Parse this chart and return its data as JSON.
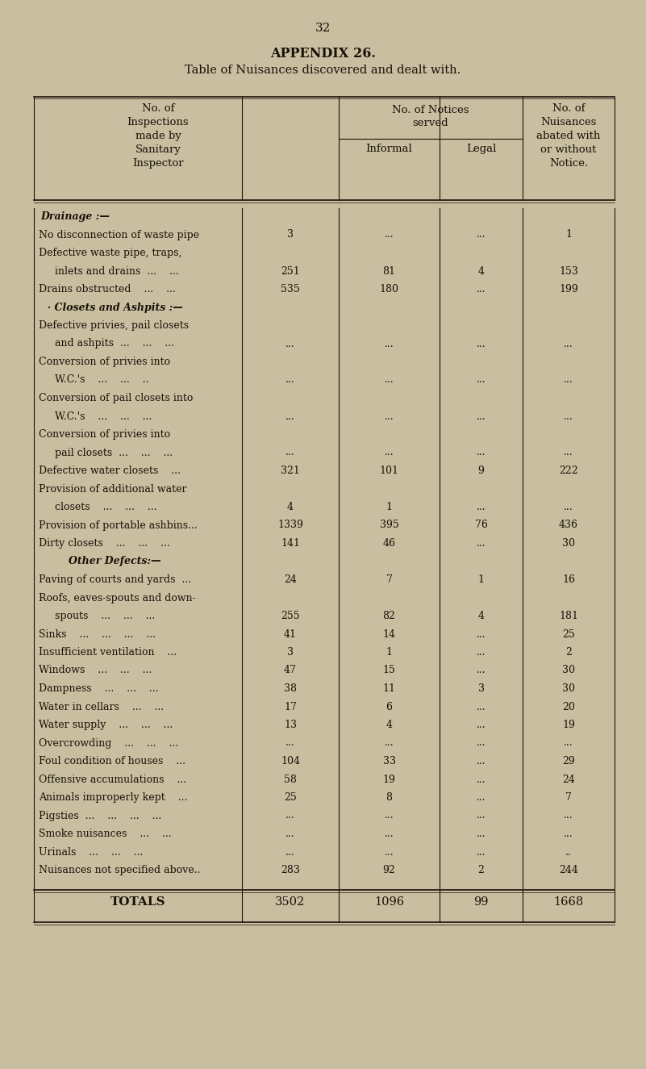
{
  "page_number": "32",
  "title1": "APPENDIX 26.",
  "title2": "Table of Nuisances discovered and dealt with.",
  "bg_color": "#c9bfa0",
  "text_color": "#1a1008",
  "rows": [
    {
      "label": "Drainage :—",
      "is_section": true,
      "inspections": "",
      "informal": "",
      "legal": "",
      "nuisances": ""
    },
    {
      "label": "No disconnection of waste pipe",
      "is_section": false,
      "inspections": "3",
      "informal": "...",
      "legal": "...",
      "nuisances": "1"
    },
    {
      "label": "Defective waste pipe, traps,",
      "is_section": false,
      "inspections": "",
      "informal": "",
      "legal": "",
      "nuisances": ""
    },
    {
      "label": "     inlets and drains  ...    ...",
      "is_section": false,
      "inspections": "251",
      "informal": "81",
      "legal": "4",
      "nuisances": "153"
    },
    {
      "label": "Drains obstructed    ...    ...",
      "is_section": false,
      "inspections": "535",
      "informal": "180",
      "legal": "...",
      "nuisances": "199"
    },
    {
      "label": "  · Closets and Ashpits :—",
      "is_section": true,
      "inspections": "",
      "informal": "",
      "legal": "",
      "nuisances": ""
    },
    {
      "label": "Defective privies, pail closets",
      "is_section": false,
      "inspections": "",
      "informal": "",
      "legal": "",
      "nuisances": ""
    },
    {
      "label": "     and ashpits  ...    ...    ...",
      "is_section": false,
      "inspections": "...",
      "informal": "...",
      "legal": "...",
      "nuisances": "..."
    },
    {
      "label": "Conversion of privies into",
      "is_section": false,
      "inspections": "",
      "informal": "",
      "legal": "",
      "nuisances": ""
    },
    {
      "label": "     W.C.'s    ...    ...    ..",
      "is_section": false,
      "inspections": "...",
      "informal": "...",
      "legal": "...",
      "nuisances": "..."
    },
    {
      "label": "Conversion of pail closets into",
      "is_section": false,
      "inspections": "",
      "informal": "",
      "legal": "",
      "nuisances": ""
    },
    {
      "label": "     W.C.'s    ...    ...    ...",
      "is_section": false,
      "inspections": "...",
      "informal": "...",
      "legal": "...",
      "nuisances": "..."
    },
    {
      "label": "Conversion of privies into",
      "is_section": false,
      "inspections": "",
      "informal": "",
      "legal": "",
      "nuisances": ""
    },
    {
      "label": "     pail closets  ...    ...    ...",
      "is_section": false,
      "inspections": "...",
      "informal": "...",
      "legal": "...",
      "nuisances": "..."
    },
    {
      "label": "Defective water closets    ...",
      "is_section": false,
      "inspections": "321",
      "informal": "101",
      "legal": "9",
      "nuisances": "222"
    },
    {
      "label": "Provision of additional water",
      "is_section": false,
      "inspections": "",
      "informal": "",
      "legal": "",
      "nuisances": ""
    },
    {
      "label": "     closets    ...    ...    ...",
      "is_section": false,
      "inspections": "4",
      "informal": "1",
      "legal": "...",
      "nuisances": "..."
    },
    {
      "label": "Provision of portable ashbins...",
      "is_section": false,
      "inspections": "1339",
      "informal": "395",
      "legal": "76",
      "nuisances": "436"
    },
    {
      "label": "Dirty closets    ...    ...    ...",
      "is_section": false,
      "inspections": "141",
      "informal": "46",
      "legal": "...",
      "nuisances": "30"
    },
    {
      "label": "        Other Defects:—",
      "is_section": true,
      "inspections": "",
      "informal": "",
      "legal": "",
      "nuisances": ""
    },
    {
      "label": "Paving of courts and yards  ...",
      "is_section": false,
      "inspections": "24",
      "informal": "7",
      "legal": "1",
      "nuisances": "16"
    },
    {
      "label": "Roofs, eaves-spouts and down-",
      "is_section": false,
      "inspections": "",
      "informal": "",
      "legal": "",
      "nuisances": ""
    },
    {
      "label": "     spouts    ...    ...    ...",
      "is_section": false,
      "inspections": "255",
      "informal": "82",
      "legal": "4",
      "nuisances": "181"
    },
    {
      "label": "Sinks    ...    ...    ...    ...",
      "is_section": false,
      "inspections": "41",
      "informal": "14",
      "legal": "...",
      "nuisances": "25"
    },
    {
      "label": "Insufficient ventilation    ...",
      "is_section": false,
      "inspections": "3",
      "informal": "1",
      "legal": "...",
      "nuisances": "2"
    },
    {
      "label": "Windows    ...    ...    ...",
      "is_section": false,
      "inspections": "47",
      "informal": "15",
      "legal": "...",
      "nuisances": "30"
    },
    {
      "label": "Dampness    ...    ...    ...",
      "is_section": false,
      "inspections": "38",
      "informal": "11",
      "legal": "3",
      "nuisances": "30"
    },
    {
      "label": "Water in cellars    ...    ...",
      "is_section": false,
      "inspections": "17",
      "informal": "6",
      "legal": "...",
      "nuisances": "20"
    },
    {
      "label": "Water supply    ...    ...    ...",
      "is_section": false,
      "inspections": "13",
      "informal": "4",
      "legal": "...",
      "nuisances": "19"
    },
    {
      "label": "Overcrowding    ...    ...    ...",
      "is_section": false,
      "inspections": "...",
      "informal": "...",
      "legal": "...",
      "nuisances": "..."
    },
    {
      "label": "Foul condition of houses    ...",
      "is_section": false,
      "inspections": "104",
      "informal": "33",
      "legal": "...",
      "nuisances": "29"
    },
    {
      "label": "Offensive accumulations    ...",
      "is_section": false,
      "inspections": "58",
      "informal": "19",
      "legal": "...",
      "nuisances": "24"
    },
    {
      "label": "Animals improperly kept    ...",
      "is_section": false,
      "inspections": "25",
      "informal": "8",
      "legal": "...",
      "nuisances": "7"
    },
    {
      "label": "Pigsties  ...    ...    ...    ...",
      "is_section": false,
      "inspections": "...",
      "informal": "...",
      "legal": "...",
      "nuisances": "..."
    },
    {
      "label": "Smoke nuisances    ...    ...",
      "is_section": false,
      "inspections": "...",
      "informal": "...",
      "legal": "...",
      "nuisances": "..."
    },
    {
      "label": "Urinals    ...    ...    ...",
      "is_section": false,
      "inspections": "...",
      "informal": "...",
      "legal": "...",
      "nuisances": ".."
    },
    {
      "label": "Nuisances not specified above..",
      "is_section": false,
      "inspections": "283",
      "informal": "92",
      "legal": "2",
      "nuisances": "244"
    }
  ],
  "totals": {
    "label": "TOTALS",
    "inspections": "3502",
    "informal": "1096",
    "legal": "99",
    "nuisances": "1668"
  }
}
